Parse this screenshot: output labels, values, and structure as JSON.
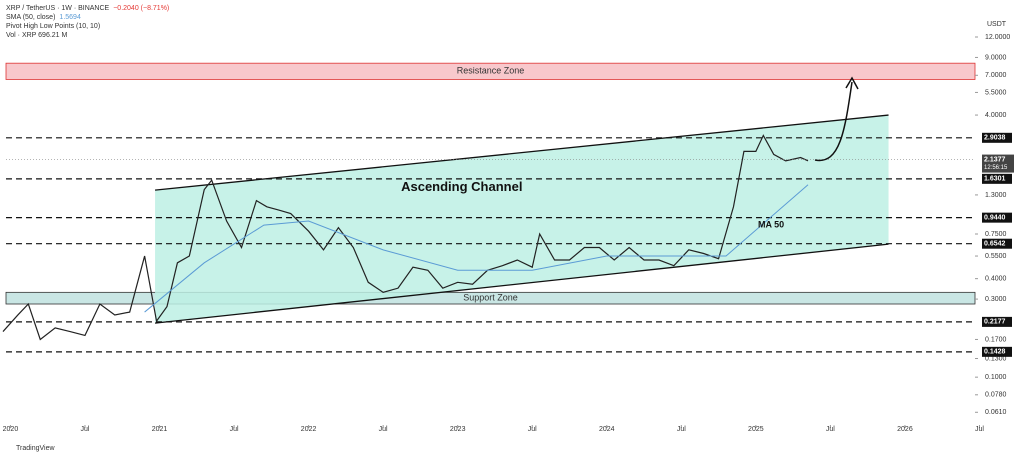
{
  "chart_data": {
    "type": "line",
    "header": {
      "symbol": "XRP / TetherUS · 1W · BINANCE",
      "change": "−0.2040 (−8.71%)"
    },
    "currency": "USDT",
    "brand": "TradingView",
    "log_scale": true,
    "xlim": [
      2019.93,
      2026.47
    ],
    "xticks": [
      2020,
      {
        "value": 2020.5,
        "label": "Jul"
      },
      2021,
      {
        "value": 2021.5,
        "label": "Jul"
      },
      2022,
      {
        "value": 2022.5,
        "label": "Jul"
      },
      2023,
      {
        "value": 2023.5,
        "label": "Jul"
      },
      2024,
      {
        "value": 2024.5,
        "label": "Jul"
      },
      2025,
      {
        "value": 2025.5,
        "label": "Jul"
      },
      2026,
      {
        "value": 2026.5,
        "label": "Jul"
      }
    ],
    "ylim": [
      0.051,
      20.2
    ],
    "yticks": [
      {
        "value": 12,
        "label": "12.0000"
      },
      {
        "value": 9,
        "label": "9.0000"
      },
      {
        "value": 7,
        "label": "7.0000"
      },
      {
        "value": 5.5,
        "label": "5.5000"
      },
      {
        "value": 4,
        "label": "4.0000"
      },
      {
        "value": 1.3,
        "label": "1.3000"
      },
      {
        "value": 0.75,
        "label": "0.7500"
      },
      {
        "value": 0.55,
        "label": "0.5500"
      },
      {
        "value": 0.4,
        "label": "0.4000"
      },
      {
        "value": 0.3,
        "label": "0.3000"
      },
      {
        "value": 0.17,
        "label": "0.1700"
      },
      {
        "value": 0.13,
        "label": "0.1300"
      },
      {
        "value": 0.1,
        "label": "0.1000"
      },
      {
        "value": 0.078,
        "label": "0.0780"
      },
      {
        "value": 0.061,
        "label": "0.0610"
      }
    ],
    "series": [
      {
        "name": "XRP / TetherUS",
        "color": "#222222",
        "x": [
          2019.95,
          2020.05,
          2020.12,
          2020.2,
          2020.3,
          2020.4,
          2020.5,
          2020.6,
          2020.7,
          2020.8,
          2020.9,
          2020.98,
          2021.05,
          2021.12,
          2021.2,
          2021.3,
          2021.35,
          2021.45,
          2021.55,
          2021.65,
          2021.72,
          2021.8,
          2021.88,
          2022.0,
          2022.1,
          2022.2,
          2022.3,
          2022.4,
          2022.5,
          2022.6,
          2022.7,
          2022.8,
          2022.9,
          2023.0,
          2023.1,
          2023.2,
          2023.3,
          2023.4,
          2023.5,
          2023.55,
          2023.65,
          2023.75,
          2023.85,
          2023.95,
          2024.05,
          2024.15,
          2024.25,
          2024.35,
          2024.45,
          2024.55,
          2024.65,
          2024.75,
          2024.85,
          2024.92,
          2025.0,
          2025.05,
          2025.12,
          2025.2,
          2025.3,
          2025.35
        ],
        "values": [
          0.19,
          0.24,
          0.28,
          0.17,
          0.2,
          0.19,
          0.18,
          0.28,
          0.24,
          0.25,
          0.55,
          0.22,
          0.27,
          0.5,
          0.55,
          1.4,
          1.6,
          0.9,
          0.62,
          1.2,
          1.1,
          1.05,
          1.0,
          0.78,
          0.6,
          0.82,
          0.62,
          0.38,
          0.33,
          0.35,
          0.47,
          0.45,
          0.35,
          0.38,
          0.37,
          0.45,
          0.48,
          0.52,
          0.47,
          0.75,
          0.52,
          0.52,
          0.62,
          0.62,
          0.52,
          0.62,
          0.52,
          0.52,
          0.48,
          0.6,
          0.57,
          0.53,
          1.1,
          2.4,
          2.4,
          3.0,
          2.3,
          2.1,
          2.2,
          2.1
        ]
      },
      {
        "name": "SMA (50, close)",
        "last": "1.5694",
        "color": "#5b9bd5",
        "x": [
          2020.9,
          2021.3,
          2021.7,
          2022.0,
          2022.5,
          2023.0,
          2023.5,
          2024.0,
          2024.8,
          2025.35
        ],
        "values": [
          0.25,
          0.5,
          0.85,
          0.9,
          0.6,
          0.45,
          0.45,
          0.55,
          0.55,
          1.5
        ]
      }
    ],
    "volume_legend": "Vol · XRP  696.21 M",
    "indicator": "Pivot High Low Points (10, 10)",
    "ma_label": "MA 50",
    "levels": [
      2.9038,
      1.6301,
      {
        "value": 0.944,
        "label": "0.9440"
      },
      0.6542,
      0.2177,
      0.1428
    ],
    "last_price": {
      "value": 2.1377,
      "countdown": "12:56:15"
    },
    "zones": [
      {
        "label": "Resistance Zone",
        "range": [
          6.6,
          8.3
        ],
        "color": "#f8c8cc"
      },
      {
        "label": "Support Zone",
        "range": [
          0.28,
          0.33
        ],
        "color": "#c9e6e4"
      }
    ],
    "channel": {
      "label": "Ascending Channel",
      "x": [
        2020.97,
        2025.89
      ],
      "upper": [
        1.39,
        4.0
      ],
      "lower": [
        0.214,
        0.65
      ],
      "color": "#bdf0e4"
    }
  }
}
